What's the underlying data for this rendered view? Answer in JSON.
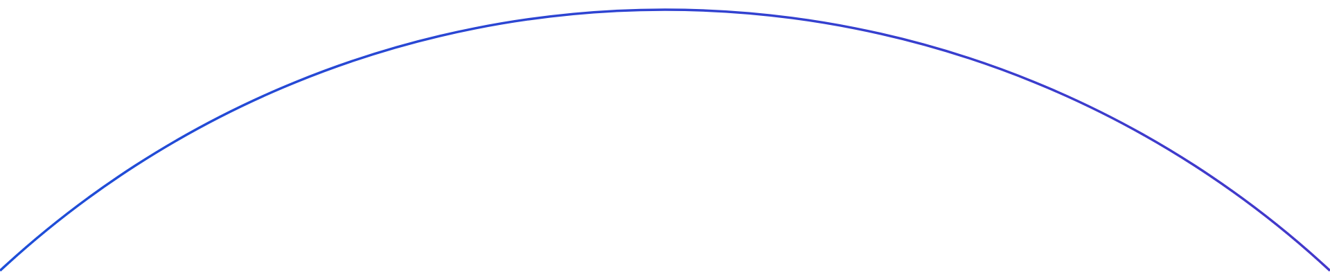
{
  "background_color": "#ffffff",
  "arc": {
    "gradient_start_color": "#1d4ed8",
    "gradient_end_color": "#4338ca"
  }
}
